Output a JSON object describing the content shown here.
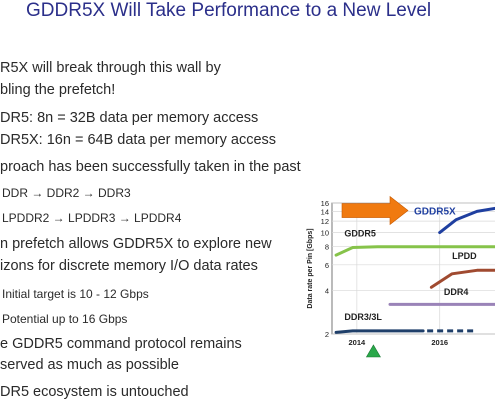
{
  "slide": {
    "title": "GDDR5X Will Take Performance to a New Level",
    "bullets": [
      {
        "text": "R5X will break through this wall by",
        "level": 1
      },
      {
        "text": "bling the prefetch!",
        "level": 1
      },
      {
        "text": "DR5:      8n = 32B data per memory access",
        "level": 1
      },
      {
        "text": "DR5X:  16n = 64B data per memory access",
        "level": 1
      },
      {
        "text": "proach has been successfully taken in the past",
        "level": 1
      },
      {
        "text": "DDR → DDR2 → DDR3",
        "level": 2
      },
      {
        "text": "LPDDR2 → LPDDR3 → LPDDR4",
        "level": 2
      },
      {
        "text": "n prefetch allows GDDR5X to explore new",
        "level": 1
      },
      {
        "text": "izons for discrete memory I/O data rates",
        "level": 1
      },
      {
        "text": "Initial target is 10 - 12 Gbps",
        "level": 2
      },
      {
        "text": "Potential up to 16 Gbps",
        "level": 2
      },
      {
        "text": "e GDDR5 command protocol remains",
        "level": 1
      },
      {
        "text": "served as much as possible",
        "level": 1
      },
      {
        "text": "DR5 ecosystem is untouched",
        "level": 1
      }
    ]
  },
  "chart_data": {
    "type": "line",
    "ylabel": "Data rate per Pin [Gbps]",
    "yticks": [
      "2",
      "4",
      "6",
      "8",
      "10",
      "12",
      "14",
      "16"
    ],
    "xticks": [
      "2014",
      "2016",
      "201"
    ],
    "series": [
      {
        "name": "GDDR5X",
        "color": "#1f3fa0",
        "points": [
          [
            2016.0,
            10
          ],
          [
            2016.4,
            12.3
          ],
          [
            2016.9,
            14
          ],
          [
            2017.4,
            14.8
          ]
        ]
      },
      {
        "name": "GDDR5",
        "color": "#86c34a",
        "points": [
          [
            2013.5,
            7
          ],
          [
            2013.9,
            7.9
          ],
          [
            2014.5,
            8
          ],
          [
            2017.4,
            8
          ]
        ]
      },
      {
        "name": "LPDD",
        "color": "#a04a30",
        "points": [
          [
            2015.8,
            4.2
          ],
          [
            2016.3,
            5.2
          ],
          [
            2016.9,
            5.5
          ],
          [
            2017.4,
            5.5
          ]
        ]
      },
      {
        "name": "DDR4",
        "color": "#9a83b8",
        "points": [
          [
            2014.8,
            3.2
          ],
          [
            2017.4,
            3.2
          ]
        ]
      },
      {
        "name": "DDR3/3L",
        "color": "#1f3f6a",
        "points": [
          [
            2013.5,
            2.05
          ],
          [
            2013.9,
            2.1
          ],
          [
            2015.6,
            2.1
          ]
        ],
        "dashed_to": 2016.9
      }
    ],
    "arrow_label": "GDDR5X",
    "marker": "green triangle at 2014.4"
  }
}
